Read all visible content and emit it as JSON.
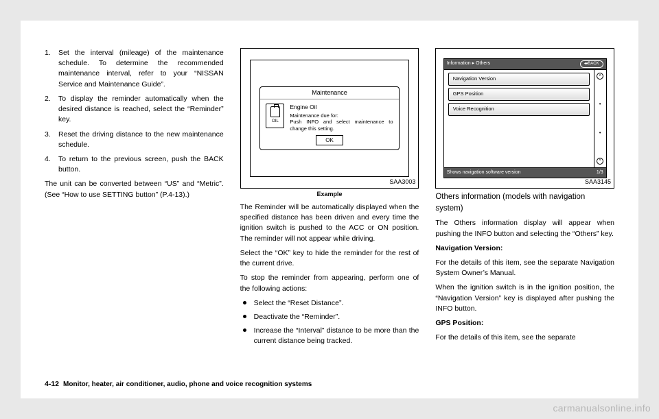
{
  "col1": {
    "steps": [
      "Set the interval (mileage) of the maintenance schedule. To determine the recommended maintenance interval, refer to your “NISSAN Service and Maintenance Guide”.",
      "To display the reminder automatically when the desired distance is reached, select the “Reminder” key.",
      "Reset the driving distance to the new maintenance schedule.",
      "To return to the previous screen, push the BACK button."
    ],
    "para": "The unit can be converted between “US” and “Metric”. (See “How to use SETTING button” (P.4-13).)"
  },
  "fig1": {
    "code": "SAA3003",
    "example": "Example",
    "popup_title": "Maintenance",
    "oil_label": "OIL",
    "line1": "Engine Oil",
    "line2": "Maintenance due for:",
    "line3": "Push INFO and select maintenance to change this setting.",
    "ok": "OK"
  },
  "col2": {
    "p1": "The Reminder will be automatically displayed when the specified distance has been driven and every time the ignition switch is pushed to the ACC or ON position. The reminder will not appear while driving.",
    "p2": "Select the “OK” key to hide the reminder for the rest of the current drive.",
    "p3": "To stop the reminder from appearing, perform one of the following actions:",
    "bullets": [
      "Select the “Reset Distance”.",
      "Deactivate the “Reminder”.",
      "Increase the “Interval” distance to be more than the current distance being tracked."
    ]
  },
  "fig2": {
    "code": "SAA3145",
    "breadcrumb": "Information ▸ Others",
    "back": "⮨BACK",
    "items": [
      "Navigation Version",
      "GPS Position",
      "Voice Recognition"
    ],
    "pager": "1/3",
    "bottom": "Shows navigation software version"
  },
  "col3": {
    "subhead": "Others information (models with navigation system)",
    "p1": "The Others information display will appear when pushing the INFO button and selecting the “Others” key.",
    "h1": "Navigation Version:",
    "p2": "For the details of this item, see the separate Navigation System Owner’s Manual.",
    "p3": "When the ignition switch is in the ignition position, the “Navigation Version” key is displayed after pushing the INFO button.",
    "h2": "GPS Position:",
    "p4": "For the details of this item, see the separate"
  },
  "footer": {
    "page": "4-12",
    "section": "Monitor, heater, air conditioner, audio, phone and voice recognition systems"
  },
  "watermark": "carmanualsonline.info"
}
